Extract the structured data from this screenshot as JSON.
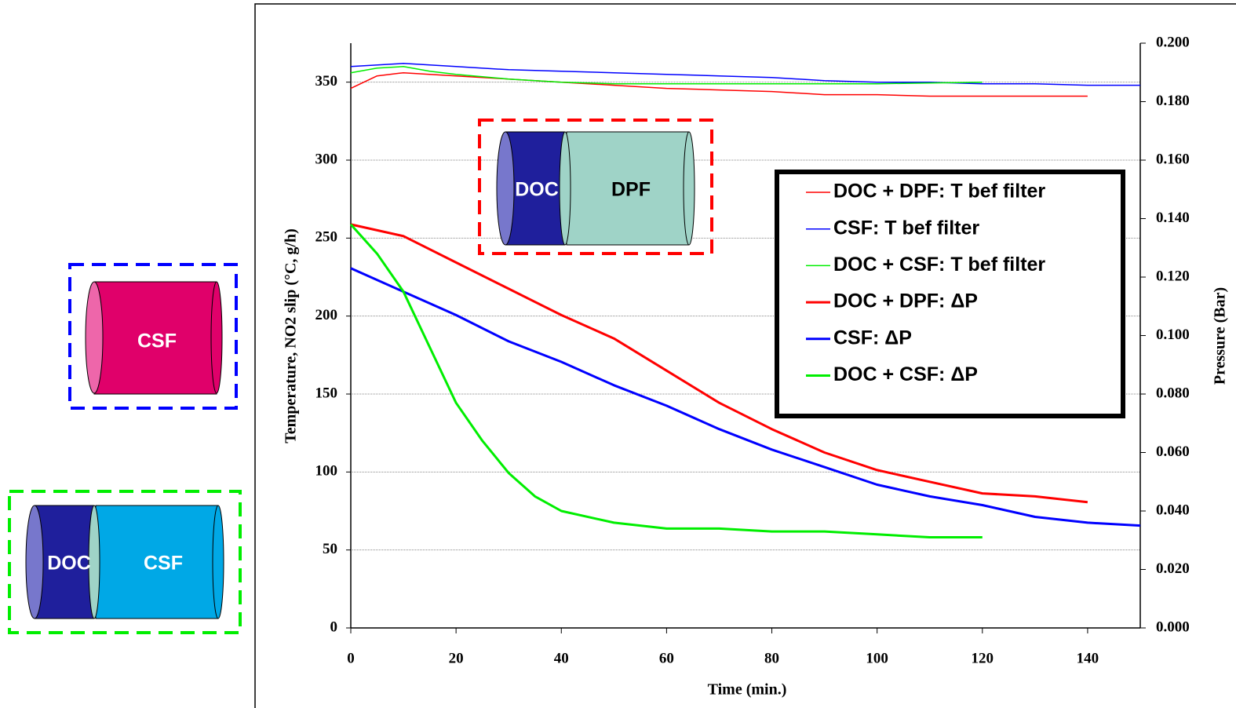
{
  "chart_data": {
    "type": "line",
    "x_label": "Time (min.)",
    "y_label": "Temperature, NO2 slip (°C, g/h)",
    "y2_label": "Pressure (Bar)",
    "xlim": [
      0,
      150
    ],
    "xticks": [
      0,
      20,
      40,
      60,
      80,
      100,
      120,
      140
    ],
    "ylim": [
      0,
      375
    ],
    "yticks": [
      0,
      50,
      100,
      150,
      200,
      250,
      300,
      350
    ],
    "y2lim": [
      0,
      0.2
    ],
    "y2ticks": [
      {
        "value": 0,
        "label": "0.000"
      },
      {
        "value": 0.02,
        "label": "0.020"
      },
      {
        "value": 0.04,
        "label": "0.040"
      },
      {
        "value": 0.06,
        "label": "0.060"
      },
      {
        "value": 0.08,
        "label": "0.080"
      },
      {
        "value": 0.1,
        "label": "0.100"
      },
      {
        "value": 0.12,
        "label": "0.120"
      },
      {
        "value": 0.14,
        "label": "0.140"
      },
      {
        "value": 0.16,
        "label": "0.160"
      },
      {
        "value": 0.18,
        "label": "0.180"
      },
      {
        "value": 0.2,
        "label": "0.200"
      }
    ],
    "grid": true,
    "legend": "upper right",
    "series": [
      {
        "name": "DOC + DPF: T bef filter",
        "color": "#ff0000",
        "width": 1.5,
        "x": [
          0,
          5,
          10,
          20,
          30,
          40,
          50,
          60,
          70,
          80,
          90,
          100,
          110,
          120,
          140
        ],
        "values": [
          346,
          354,
          356,
          354,
          352,
          350,
          348,
          346,
          345,
          344,
          342,
          342,
          341,
          341,
          341
        ]
      },
      {
        "name": "CSF: T bef filter",
        "color": "#0000ff",
        "width": 1.5,
        "x": [
          0,
          10,
          20,
          30,
          40,
          50,
          60,
          70,
          80,
          90,
          100,
          110,
          120,
          130,
          140,
          150
        ],
        "values": [
          360,
          362,
          360,
          358,
          357,
          356,
          355,
          354,
          353,
          351,
          350,
          350,
          349,
          349,
          348,
          348
        ]
      },
      {
        "name": "DOC + CSF: T bef filter",
        "color": "#00ee00",
        "width": 1.5,
        "x": [
          0,
          5,
          10,
          15,
          20,
          30,
          40,
          50,
          60,
          80,
          100,
          120
        ],
        "values": [
          356,
          359,
          360,
          357,
          355,
          352,
          350,
          349,
          349,
          349,
          349,
          350
        ]
      },
      {
        "name": "DOC + DPF: ΔP",
        "color": "#ff0000",
        "width": 3,
        "axis": "y2",
        "x": [
          0,
          10,
          20,
          30,
          40,
          50,
          60,
          70,
          80,
          90,
          100,
          110,
          120,
          130,
          140
        ],
        "values": [
          0.138,
          0.134,
          0.125,
          0.116,
          0.107,
          0.099,
          0.088,
          0.077,
          0.068,
          0.06,
          0.054,
          0.05,
          0.046,
          0.045,
          0.043
        ]
      },
      {
        "name": "CSF: ΔP",
        "color": "#0000ff",
        "width": 3,
        "axis": "y2",
        "x": [
          0,
          10,
          20,
          30,
          40,
          50,
          60,
          70,
          80,
          90,
          100,
          110,
          120,
          130,
          140,
          150
        ],
        "values": [
          0.123,
          0.115,
          0.107,
          0.098,
          0.091,
          0.083,
          0.076,
          0.068,
          0.061,
          0.055,
          0.049,
          0.045,
          0.042,
          0.038,
          0.036,
          0.035
        ]
      },
      {
        "name": "DOC + CSF: ΔP",
        "color": "#00ee00",
        "width": 3,
        "axis": "y2",
        "x": [
          0,
          5,
          10,
          15,
          20,
          25,
          30,
          35,
          40,
          50,
          60,
          70,
          80,
          90,
          100,
          110,
          120
        ],
        "values": [
          0.138,
          0.128,
          0.115,
          0.096,
          0.077,
          0.064,
          0.053,
          0.045,
          0.04,
          0.036,
          0.034,
          0.034,
          0.033,
          0.033,
          0.032,
          0.031,
          0.031
        ]
      }
    ],
    "annotations": [
      "DOC",
      "DPF",
      "CSF",
      "DOC",
      "CSF"
    ]
  }
}
